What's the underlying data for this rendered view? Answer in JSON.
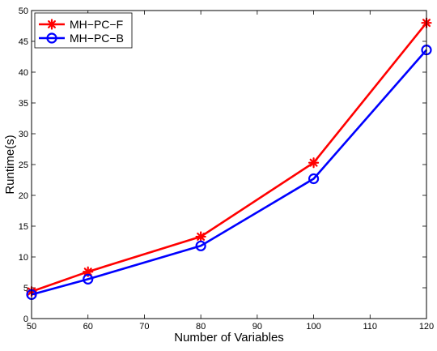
{
  "chart_data": {
    "type": "line",
    "xlabel": "Number of Variables",
    "ylabel": "Runtime(s)",
    "xlim": [
      50,
      120
    ],
    "ylim": [
      0,
      50
    ],
    "x_ticks": [
      50,
      60,
      70,
      80,
      90,
      100,
      110,
      120
    ],
    "y_ticks": [
      0,
      5,
      10,
      15,
      20,
      25,
      30,
      35,
      40,
      45,
      50
    ],
    "x": [
      50,
      60,
      80,
      100,
      120
    ],
    "grid": false,
    "legend_position": "top-left",
    "series": [
      {
        "name": "MH−PC−F",
        "values": [
          4.4,
          7.6,
          13.3,
          25.3,
          48.0
        ],
        "color": "#ff0000",
        "marker": "asterisk"
      },
      {
        "name": "MH−PC−B",
        "values": [
          3.9,
          6.4,
          11.8,
          22.7,
          43.6
        ],
        "color": "#0000ff",
        "marker": "circle"
      }
    ]
  }
}
